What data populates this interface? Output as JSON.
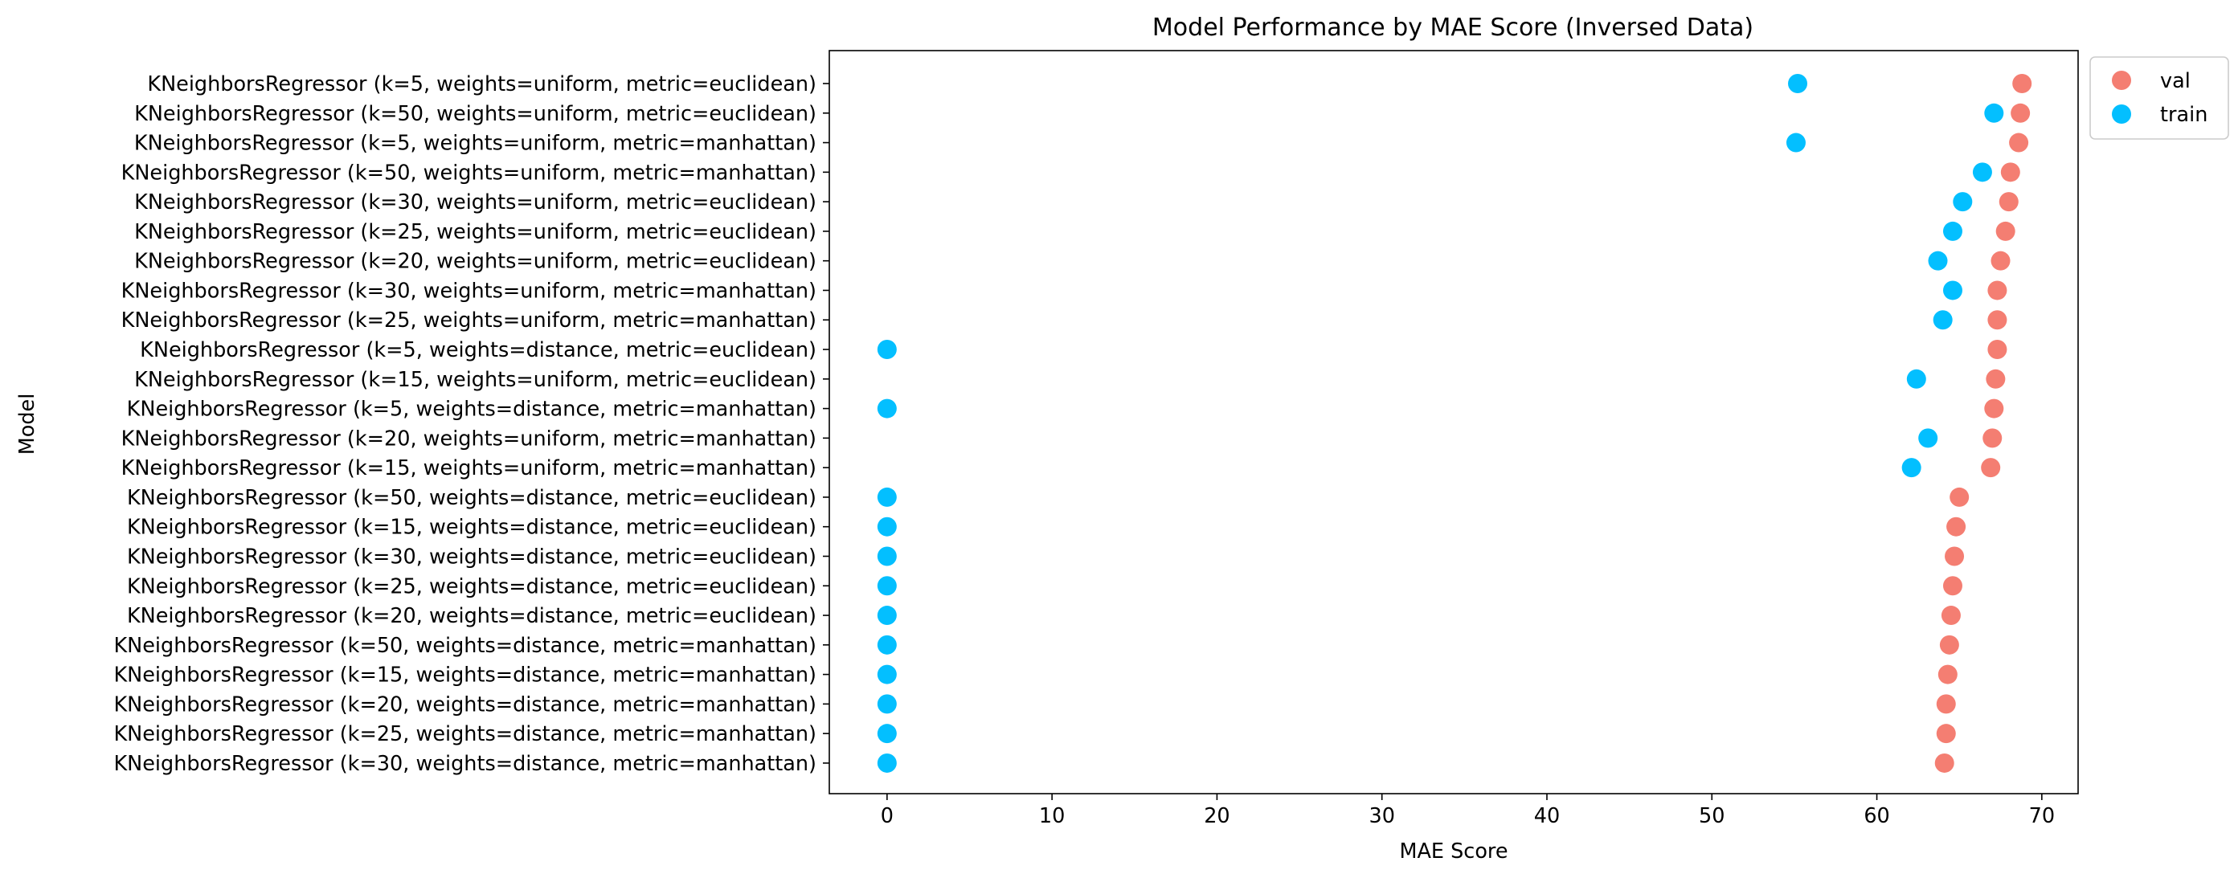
{
  "chart_data": {
    "type": "scatter",
    "title": "Model Performance by MAE Score (Inversed Data)",
    "xlabel": "MAE Score",
    "ylabel": "Model",
    "xlim": [
      -3.5,
      72.2
    ],
    "xticks": [
      0,
      10,
      20,
      30,
      40,
      50,
      60,
      70
    ],
    "grid": false,
    "legend_position": "outside-top-right",
    "categories": [
      "KNeighborsRegressor (k=5, weights=uniform, metric=euclidean)",
      "KNeighborsRegressor (k=50, weights=uniform, metric=euclidean)",
      "KNeighborsRegressor (k=5, weights=uniform, metric=manhattan)",
      "KNeighborsRegressor (k=50, weights=uniform, metric=manhattan)",
      "KNeighborsRegressor (k=30, weights=uniform, metric=euclidean)",
      "KNeighborsRegressor (k=25, weights=uniform, metric=euclidean)",
      "KNeighborsRegressor (k=20, weights=uniform, metric=euclidean)",
      "KNeighborsRegressor (k=30, weights=uniform, metric=manhattan)",
      "KNeighborsRegressor (k=25, weights=uniform, metric=manhattan)",
      "KNeighborsRegressor (k=5, weights=distance, metric=euclidean)",
      "KNeighborsRegressor (k=15, weights=uniform, metric=euclidean)",
      "KNeighborsRegressor (k=5, weights=distance, metric=manhattan)",
      "KNeighborsRegressor (k=20, weights=uniform, metric=manhattan)",
      "KNeighborsRegressor (k=15, weights=uniform, metric=manhattan)",
      "KNeighborsRegressor (k=50, weights=distance, metric=euclidean)",
      "KNeighborsRegressor (k=15, weights=distance, metric=euclidean)",
      "KNeighborsRegressor (k=30, weights=distance, metric=euclidean)",
      "KNeighborsRegressor (k=25, weights=distance, metric=euclidean)",
      "KNeighborsRegressor (k=20, weights=distance, metric=euclidean)",
      "KNeighborsRegressor (k=50, weights=distance, metric=manhattan)",
      "KNeighborsRegressor (k=15, weights=distance, metric=manhattan)",
      "KNeighborsRegressor (k=20, weights=distance, metric=manhattan)",
      "KNeighborsRegressor (k=25, weights=distance, metric=manhattan)",
      "KNeighborsRegressor (k=30, weights=distance, metric=manhattan)"
    ],
    "series": [
      {
        "name": "val",
        "color": "#f47e72",
        "values": [
          68.8,
          68.7,
          68.6,
          68.1,
          68.0,
          67.8,
          67.5,
          67.3,
          67.3,
          67.3,
          67.2,
          67.1,
          67.0,
          66.9,
          65.0,
          64.8,
          64.7,
          64.6,
          64.5,
          64.4,
          64.3,
          64.2,
          64.2,
          64.1
        ]
      },
      {
        "name": "train",
        "color": "#03bfff",
        "values": [
          55.2,
          67.1,
          55.1,
          66.4,
          65.2,
          64.6,
          63.7,
          64.6,
          64.0,
          0.0,
          62.4,
          0.0,
          63.1,
          62.1,
          0.0,
          0.0,
          0.0,
          0.0,
          0.0,
          0.0,
          0.0,
          0.0,
          0.0,
          0.0
        ]
      }
    ]
  }
}
